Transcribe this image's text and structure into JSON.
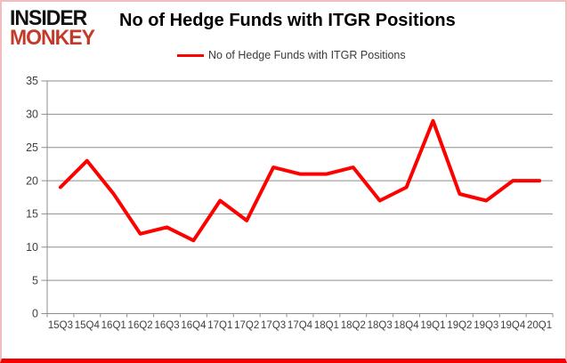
{
  "logo": {
    "line1": "INSIDER",
    "line2": "MONKEY"
  },
  "header": {
    "title": "No of Hedge Funds with ITGR Positions"
  },
  "legend": {
    "label": "No of Hedge Funds with ITGR Positions"
  },
  "chart_data": {
    "type": "line",
    "title": "No of Hedge Funds with ITGR Positions",
    "categories": [
      "15Q3",
      "15Q4",
      "16Q1",
      "16Q2",
      "16Q3",
      "16Q4",
      "17Q1",
      "17Q2",
      "17Q3",
      "17Q4",
      "18Q1",
      "18Q2",
      "18Q3",
      "18Q4",
      "19Q1",
      "19Q2",
      "19Q3",
      "19Q4",
      "20Q1"
    ],
    "series": [
      {
        "name": "No of Hedge Funds with ITGR Positions",
        "color": "#ff0000",
        "values": [
          19,
          23,
          18,
          12,
          13,
          11,
          17,
          14,
          22,
          21,
          21,
          22,
          17,
          19,
          29,
          18,
          17,
          20,
          20
        ]
      }
    ],
    "xlabel": "",
    "ylabel": "",
    "ylim": [
      0,
      35
    ],
    "yticks": [
      0,
      5,
      10,
      15,
      20,
      25,
      30,
      35
    ],
    "grid": "horizontal",
    "legend_position": "top"
  },
  "colors": {
    "line": "#ff0000",
    "grid": "#8e8e8e",
    "axis": "#8e8e8e",
    "tick_label": "#3f3f3f",
    "logo_monkey": "#c23b2a",
    "frame_side": "#f1bdbd",
    "frame_bottom": "#f40000"
  }
}
